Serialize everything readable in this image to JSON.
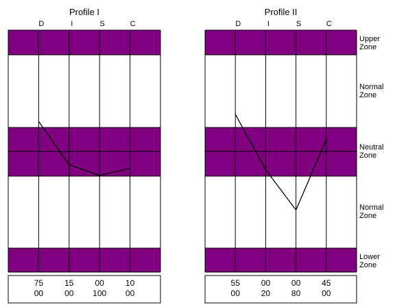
{
  "colors": {
    "band": "#800080",
    "background": "#ffffff",
    "line": "#000000"
  },
  "chart_data": [
    {
      "type": "line",
      "title": "Profile I",
      "categories": [
        "D",
        "I",
        "S",
        "C"
      ],
      "zones": [
        "Upper Zone",
        "Normal Zone",
        "Neutral Zone",
        "Normal Zone",
        "Lower Zone"
      ],
      "values": [
        75,
        15,
        0,
        10
      ],
      "table_rows": [
        [
          "75",
          "15",
          "00",
          "10"
        ],
        [
          "00",
          "00",
          "100",
          "00"
        ]
      ]
    },
    {
      "type": "line",
      "title": "Profile II",
      "categories": [
        "D",
        "I",
        "S",
        "C"
      ],
      "zones": [
        "Upper Zone",
        "Normal Zone",
        "Neutral Zone",
        "Normal Zone",
        "Lower Zone"
      ],
      "values": [
        85,
        8,
        -48,
        50
      ],
      "table_rows": [
        [
          "55",
          "00",
          "00",
          "45"
        ],
        [
          "00",
          "20",
          "80",
          "00"
        ]
      ]
    }
  ],
  "zone_labels": [
    [
      "Upper",
      "Zone"
    ],
    [
      "Normal",
      "Zone"
    ],
    [
      "Neutral",
      "Zone"
    ],
    [
      "Normal",
      "Zone"
    ],
    [
      "Lower",
      "Zone"
    ]
  ]
}
